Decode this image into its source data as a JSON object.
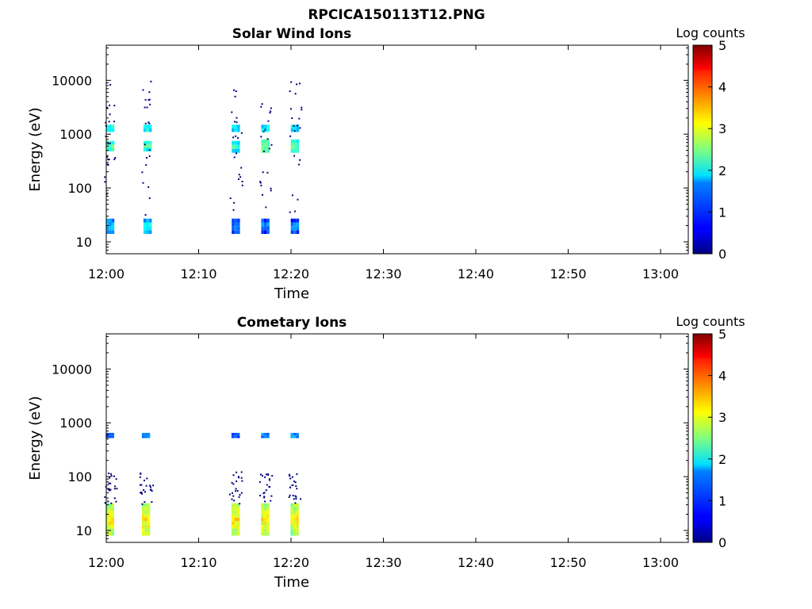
{
  "figure_title": "RPCICA150113T12.PNG",
  "chart_data": [
    {
      "type": "heatmap",
      "title": "Solar Wind Ions",
      "xlabel": "Time",
      "ylabel": "Energy (eV)",
      "x_ticks": [
        "12:00",
        "12:10",
        "12:20",
        "12:30",
        "12:40",
        "12:50",
        "13:00"
      ],
      "y_ticks": [
        "10",
        "100",
        "1000",
        "10000"
      ],
      "y_scale": "log",
      "xlim": [
        "12:00",
        "13:03"
      ],
      "ylim": [
        6,
        45000
      ],
      "colorbar": {
        "label": "Log counts",
        "range": [
          0,
          5
        ],
        "ticks": [
          "0",
          "1",
          "2",
          "3",
          "4",
          "5"
        ],
        "colormap": "jet"
      },
      "bursts": [
        {
          "t": 0.35,
          "width_min": 0.75,
          "core": {
            "E": [
              14,
              27
            ],
            "log_counts": 1.3
          },
          "ion_peak": {
            "E": [
              480,
              750
            ],
            "log_counts": 2.2
          },
          "ion_high": {
            "E": [
              1100,
              1500
            ],
            "log_counts": 2.0
          }
        },
        {
          "t": 4.4,
          "width_min": 0.75,
          "core": {
            "E": [
              14,
              27
            ],
            "log_counts": 1.6
          },
          "ion_peak": {
            "E": [
              480,
              750
            ],
            "log_counts": 2.1
          },
          "ion_high": {
            "E": [
              1100,
              1500
            ],
            "log_counts": 1.9
          }
        },
        {
          "t": 14.0,
          "width_min": 0.85,
          "core": {
            "E": [
              14,
              27
            ],
            "log_counts": 1.0
          },
          "ion_peak": {
            "E": [
              450,
              750
            ],
            "log_counts": 2.0
          },
          "ion_high": {
            "E": [
              1100,
              1500
            ],
            "log_counts": 1.8
          }
        },
        {
          "t": 17.2,
          "width_min": 0.85,
          "core": {
            "E": [
              14,
              27
            ],
            "log_counts": 1.0
          },
          "ion_peak": {
            "E": [
              450,
              800
            ],
            "log_counts": 2.3
          },
          "ion_high": {
            "E": [
              1100,
              1500
            ],
            "log_counts": 1.9
          }
        },
        {
          "t": 20.4,
          "width_min": 0.85,
          "core": {
            "E": [
              14,
              27
            ],
            "log_counts": 1.0
          },
          "ion_peak": {
            "E": [
              450,
              800
            ],
            "log_counts": 2.2
          },
          "ion_high": {
            "E": [
              1100,
              1500
            ],
            "log_counts": 1.9
          }
        }
      ]
    },
    {
      "type": "heatmap",
      "title": "Cometary Ions",
      "xlabel": "Time",
      "ylabel": "Energy (eV)",
      "x_ticks": [
        "12:00",
        "12:10",
        "12:20",
        "12:30",
        "12:40",
        "12:50",
        "13:00"
      ],
      "y_ticks": [
        "10",
        "100",
        "1000",
        "10000"
      ],
      "y_scale": "log",
      "xlim": [
        "12:00",
        "13:03"
      ],
      "ylim": [
        6,
        45000
      ],
      "colorbar": {
        "label": "Log counts",
        "range": [
          0,
          5
        ],
        "ticks": [
          "0",
          "1",
          "2",
          "3",
          "4",
          "5"
        ],
        "colormap": "jet"
      },
      "bursts": [
        {
          "t": 0.4,
          "width_min": 0.9,
          "core": {
            "E": [
              8,
              32
            ],
            "log_counts": 2.9
          },
          "ion_peak": {
            "E": [
              520,
              650
            ],
            "log_counts": 1.2
          },
          "ion_high": null
        },
        {
          "t": 4.3,
          "width_min": 0.9,
          "core": {
            "E": [
              8,
              32
            ],
            "log_counts": 2.9
          },
          "ion_peak": {
            "E": [
              520,
              650
            ],
            "log_counts": 1.2
          },
          "ion_high": null
        },
        {
          "t": 14.0,
          "width_min": 0.9,
          "core": {
            "E": [
              8,
              32
            ],
            "log_counts": 2.9
          },
          "ion_peak": {
            "E": [
              520,
              650
            ],
            "log_counts": 1.0
          },
          "ion_high": null
        },
        {
          "t": 17.2,
          "width_min": 0.9,
          "core": {
            "E": [
              8,
              32
            ],
            "log_counts": 2.8
          },
          "ion_peak": {
            "E": [
              520,
              650
            ],
            "log_counts": 1.3
          },
          "ion_high": null
        },
        {
          "t": 20.4,
          "width_min": 0.9,
          "core": {
            "E": [
              8,
              32
            ],
            "log_counts": 2.8
          },
          "ion_peak": {
            "E": [
              520,
              650
            ],
            "log_counts": 1.4
          },
          "ion_high": null
        }
      ]
    }
  ]
}
